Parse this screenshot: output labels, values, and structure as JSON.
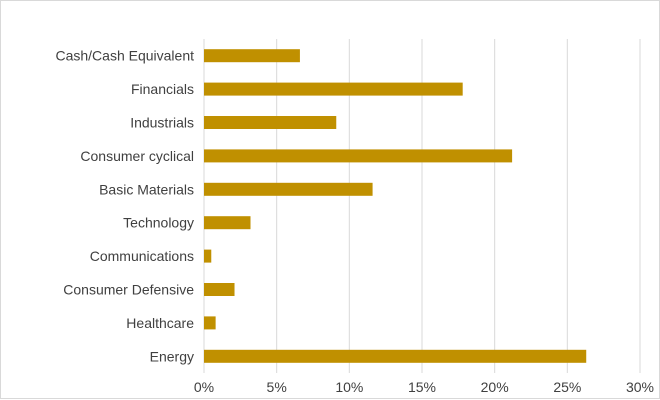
{
  "chart_data": {
    "type": "bar",
    "orientation": "horizontal",
    "title": "",
    "xlabel": "",
    "ylabel": "",
    "categories": [
      "Cash/Cash Equivalent",
      "Financials",
      "Industrials",
      "Consumer cyclical",
      "Basic Materials",
      "Technology",
      "Communications",
      "Consumer Defensive",
      "Healthcare",
      "Energy"
    ],
    "values": [
      6.6,
      17.8,
      9.1,
      21.2,
      11.6,
      3.2,
      0.5,
      2.1,
      0.8,
      26.3
    ],
    "value_unit": "%",
    "xlim": [
      0,
      30
    ],
    "x_ticks": [
      "0%",
      "5%",
      "10%",
      "15%",
      "20%",
      "25%",
      "30%"
    ],
    "grid": "vertical gridlines on",
    "legend": "none",
    "bar_color": "#C09000",
    "gridline_color": "#d9d9d9",
    "label_color": "#404040"
  }
}
